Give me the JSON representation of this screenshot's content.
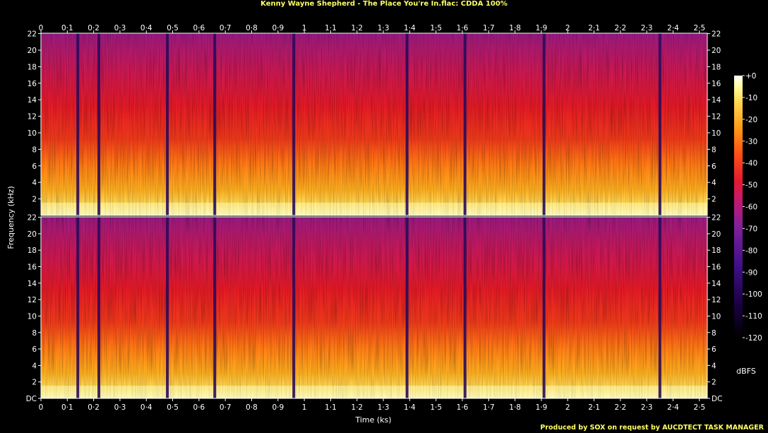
{
  "title": "Kenny Wayne Shepherd - The Place You're In.flac: CDDA 100%",
  "footer": "Produced by SOX on request by AUCDTECT TASK MANAGER",
  "chart_data": {
    "type": "heatmap",
    "title": "Kenny Wayne Shepherd - The Place You're In.flac: CDDA 100%",
    "xlabel": "Time (ks)",
    "ylabel": "Frequency (kHz)",
    "colorbar_label": "dBFS",
    "channels": 2,
    "x_ticks": [
      "0",
      "0·1",
      "0·2",
      "0·3",
      "0·4",
      "0·5",
      "0·6",
      "0·7",
      "0·8",
      "0·9",
      "1",
      "1·1",
      "1·2",
      "1·3",
      "1·4",
      "1·5",
      "1·6",
      "1·7",
      "1·8",
      "1·9",
      "2",
      "2·1",
      "2·2",
      "2·3",
      "2·4",
      "2·5"
    ],
    "x_tick_values": [
      0,
      0.1,
      0.2,
      0.3,
      0.4,
      0.5,
      0.6,
      0.7,
      0.8,
      0.9,
      1.0,
      1.1,
      1.2,
      1.3,
      1.4,
      1.5,
      1.6,
      1.7,
      1.8,
      1.9,
      2.0,
      2.1,
      2.2,
      2.3,
      2.4,
      2.5
    ],
    "xlim": [
      0,
      2.53
    ],
    "y_ticks": [
      "DC",
      "2",
      "4",
      "6",
      "8",
      "10",
      "12",
      "14",
      "16",
      "18",
      "20",
      "22"
    ],
    "y_tick_values": [
      0,
      2,
      4,
      6,
      8,
      10,
      12,
      14,
      16,
      18,
      20,
      22
    ],
    "ylim": [
      0,
      22.05
    ],
    "colorbar_ticks": [
      "+0",
      "-10",
      "-20",
      "-30",
      "-40",
      "-50",
      "-60",
      "-70",
      "-80",
      "-90",
      "-100",
      "-110",
      "-120"
    ],
    "colorbar_values": [
      0,
      -10,
      -20,
      -30,
      -40,
      -50,
      -60,
      -70,
      -80,
      -90,
      -100,
      -110,
      -120
    ],
    "clim": [
      -120,
      0
    ],
    "track_boundaries_ks": [
      0.14,
      0.22,
      0.48,
      0.66,
      0.96,
      1.39,
      1.61,
      1.91,
      2.35
    ],
    "colormap": [
      "#000000",
      "#1a0033",
      "#3a0a7a",
      "#6a1a9a",
      "#a0208a",
      "#d02050",
      "#ee2222",
      "#ff5511",
      "#ff9a1a",
      "#ffd040",
      "#ffff99",
      "#ffffff"
    ]
  }
}
